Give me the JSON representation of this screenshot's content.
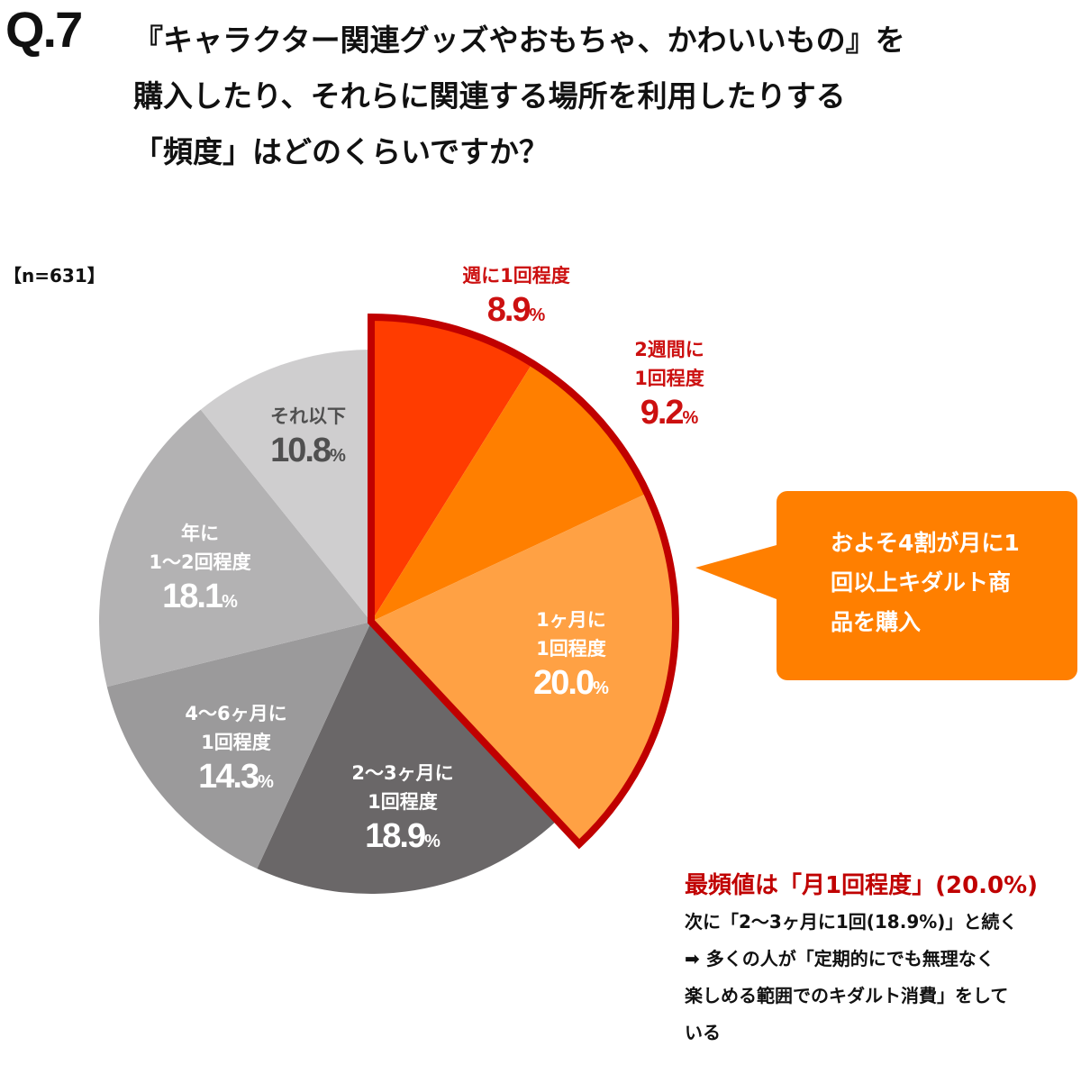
{
  "question": {
    "number": "Q.7",
    "lines": [
      "『キャラクター関連グッズやおもちゃ、かわいいもの』を",
      "購入したり、それらに関連する場所を利用したりする",
      "「頻度」はどのくらいですか？"
    ]
  },
  "sample": "【n=631】",
  "chart_data": {
    "type": "pie",
    "start": "top, clockwise",
    "slices": [
      {
        "name": [
          "週に1回程度"
        ],
        "value": 8.9,
        "color": "#ff3c00",
        "highlight": true,
        "label_color": "#cc1010",
        "label_outside": true
      },
      {
        "name": [
          "2週間に",
          "1回程度"
        ],
        "value": 9.2,
        "color": "#ff7f00",
        "highlight": true,
        "label_color": "#cc1010",
        "label_outside": true
      },
      {
        "name": [
          "1ヶ月に",
          "1回程度"
        ],
        "value": 20.0,
        "color": "#ffa144",
        "highlight": true,
        "label_color": "#ffffff"
      },
      {
        "name": [
          "2〜3ヶ月に",
          "1回程度"
        ],
        "value": 18.9,
        "color": "#6a6768",
        "label_color": "#ffffff"
      },
      {
        "name": [
          "4〜6ヶ月に",
          "1回程度"
        ],
        "value": 14.3,
        "color": "#9b9a9b",
        "label_color": "#ffffff"
      },
      {
        "name": [
          "年に",
          "1〜2回程度"
        ],
        "value": 18.1,
        "color": "#b3b2b3",
        "label_color": "#ffffff"
      },
      {
        "name": [
          "それ以下"
        ],
        "value": 10.8,
        "color": "#cfcecf",
        "label_color": "#505050"
      }
    ],
    "highlight_outline_color": "#c00000",
    "unit": "%"
  },
  "callout": {
    "text": [
      "およそ4割が月に1",
      "回以上キダルト商",
      "品を購入"
    ],
    "color": "#ff7f00"
  },
  "summary": {
    "headline": "最頻値は「月1回程度」(20.0%)",
    "lines": [
      "次に「2〜3ヶ月に1回(18.9%)」と続く",
      "➡  多くの人が「定期的にでも無理なく",
      "楽しめる範囲でのキダルト消費」をして",
      "いる"
    ]
  }
}
